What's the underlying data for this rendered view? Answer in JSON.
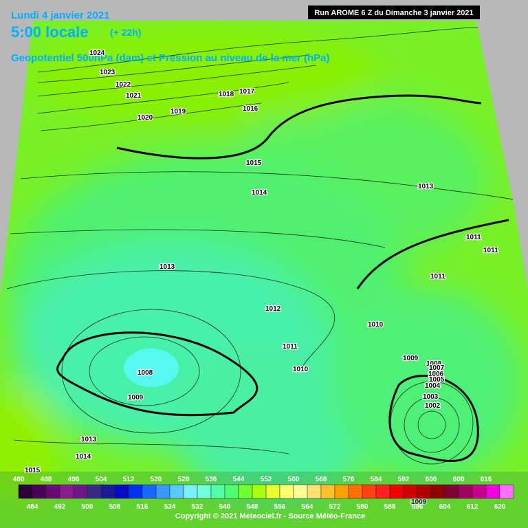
{
  "header": {
    "date": "Lundi 4 janvier 2021",
    "time": "5:00 locale",
    "lead": "(+ 22h)",
    "subtitle": "Geopotentiel 500hPa (dam) et Pression au niveau de la mer (hPa)",
    "run": "Run AROME 6 Z du Dimanche 3 janvier 2021"
  },
  "isobar_labels": [
    "1024",
    "1023",
    "1022",
    "1021",
    "1020",
    "1019",
    "1018",
    "1017",
    "1016",
    "1015",
    "1014",
    "1013",
    "1013",
    "1012",
    "1011",
    "1010",
    "1009",
    "1008",
    "1009",
    "1013",
    "1014",
    "1015",
    "1011",
    "1011",
    "1011",
    "1010",
    "1009",
    "1008",
    "1007",
    "1006",
    "1005",
    "1004",
    "1003",
    "1002",
    "1009"
  ],
  "legend": {
    "labels": [
      480,
      484,
      488,
      492,
      496,
      500,
      504,
      508,
      512,
      516,
      520,
      524,
      528,
      532,
      536,
      540,
      544,
      548,
      552,
      556,
      560,
      564,
      568,
      572,
      576,
      580,
      584,
      588,
      592,
      596,
      600,
      604,
      608,
      612,
      616,
      620
    ],
    "colors": [
      "#2a0038",
      "#4a0058",
      "#6a0878",
      "#8a1a90",
      "#6a1888",
      "#3a2a88",
      "#1a1a98",
      "#0808c8",
      "#0030f0",
      "#1868ff",
      "#3898ff",
      "#58c8ff",
      "#78f0ff",
      "#70ffd8",
      "#50ffa8",
      "#50ff70",
      "#70ff30",
      "#a8ff10",
      "#e8ff30",
      "#ffff70",
      "#ffff98",
      "#ffe070",
      "#ffc030",
      "#ffa000",
      "#ff7000",
      "#ff4010",
      "#ff2020",
      "#f00000",
      "#d00000",
      "#b00000",
      "#900000",
      "#800030",
      "#a00060",
      "#c80090",
      "#f000e0",
      "#ff70ff"
    ]
  },
  "footer": {
    "copyright": "Copyright © 2021 Meteociel.fr - Source Météo-France"
  }
}
